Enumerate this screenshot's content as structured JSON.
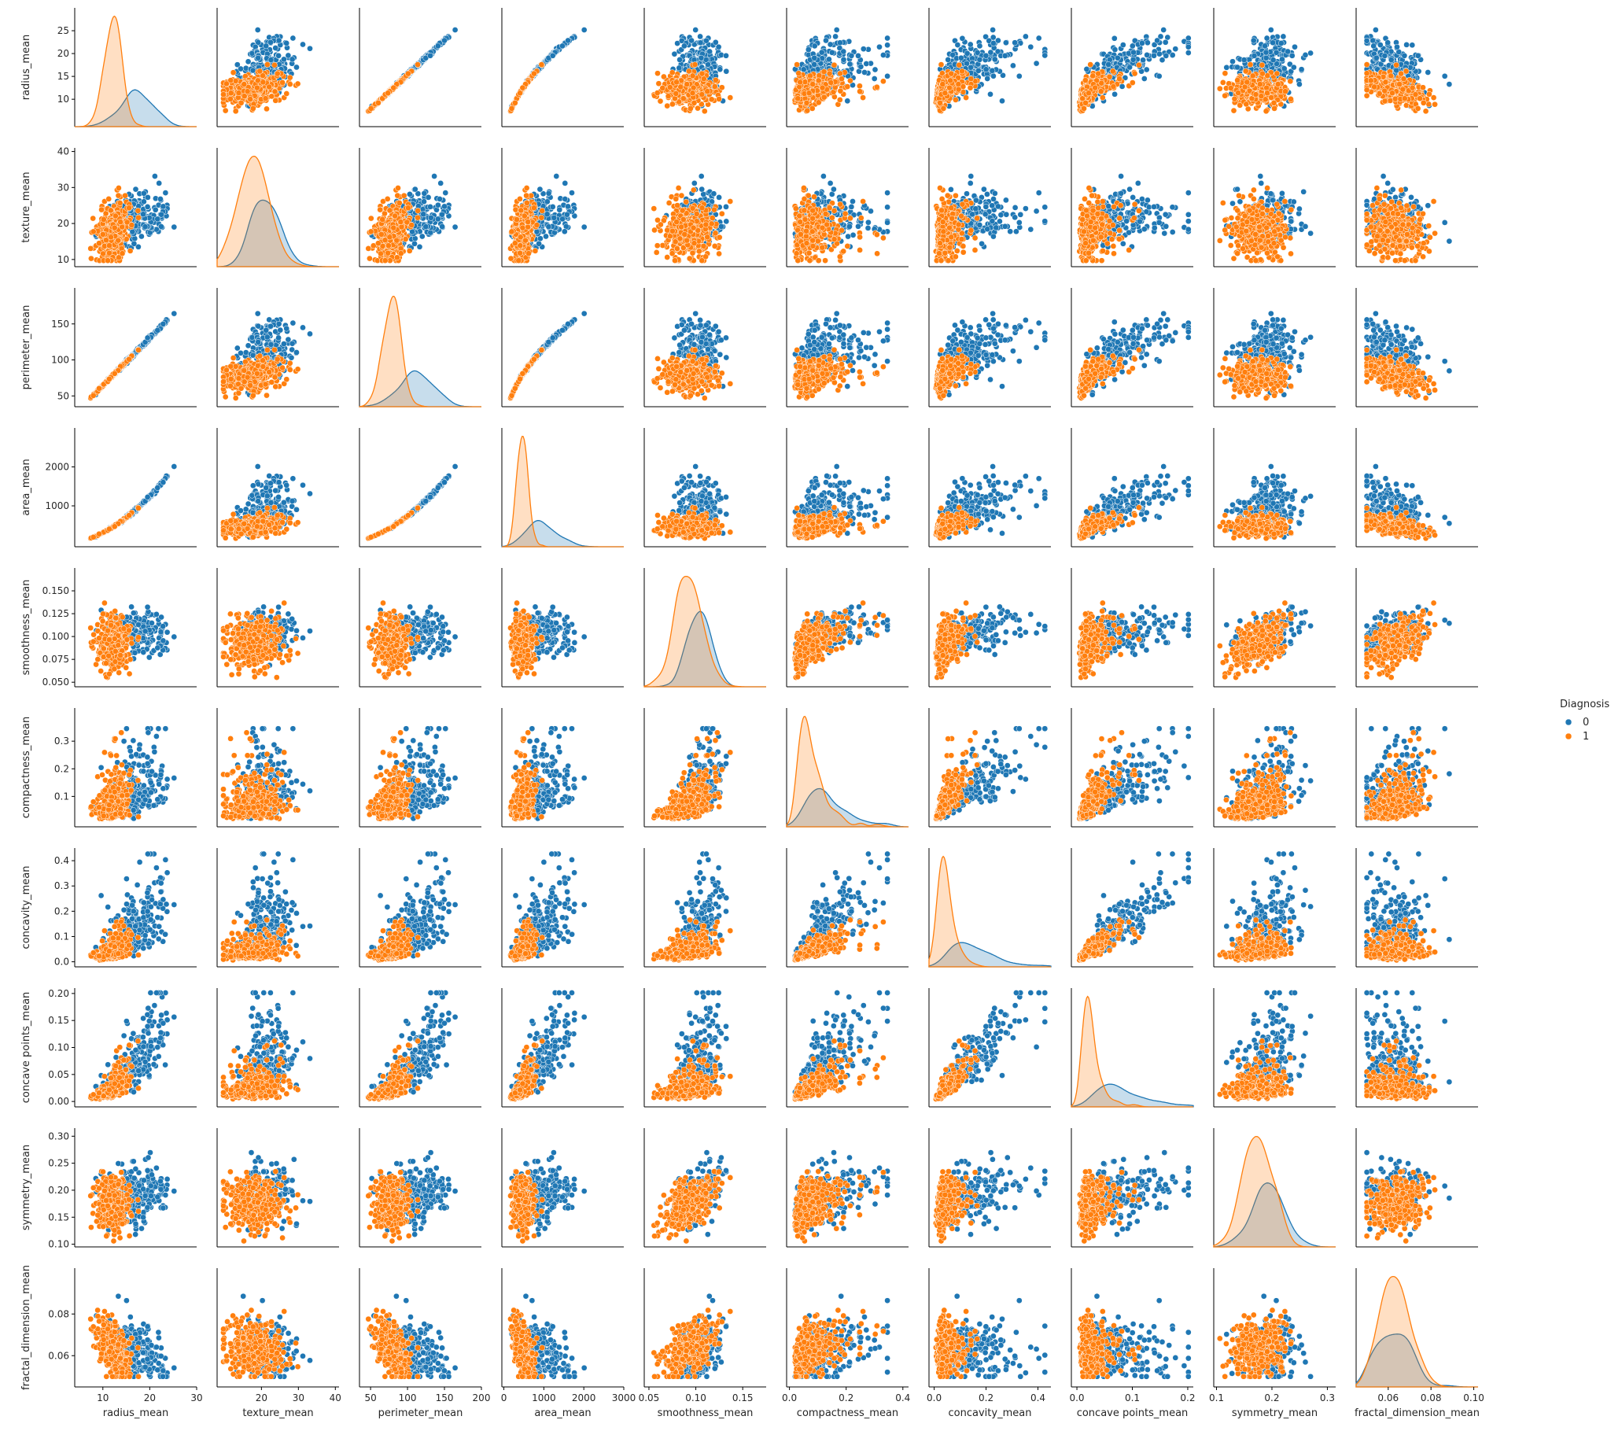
{
  "legend": {
    "title": "Diagnosis",
    "placement": "right"
  },
  "chart_data": {
    "type": "scatter",
    "subtype": "pairplot",
    "hue": "Diagnosis",
    "hue_levels": [
      {
        "name": "0",
        "color": "#1f77b4"
      },
      {
        "name": "1",
        "color": "#ff7f0e"
      }
    ],
    "diagonal": "kde",
    "variables": [
      {
        "name": "radius_mean",
        "lim": [
          4.0,
          30.0
        ],
        "ticks": [
          10,
          20,
          30
        ],
        "yticks": [
          10,
          15,
          20,
          25
        ],
        "decimals": 0,
        "dist": {
          "0": {
            "mean": 17.46,
            "sd": 3.2
          },
          "1": {
            "mean": 12.15,
            "sd": 1.78
          }
        },
        "range": [
          6.98,
          28.11
        ]
      },
      {
        "name": "texture_mean",
        "lim": [
          8.0,
          41.0
        ],
        "ticks": [
          20,
          30,
          40
        ],
        "yticks": [
          10,
          20,
          30,
          40
        ],
        "decimals": 0,
        "dist": {
          "0": {
            "mean": 21.6,
            "sd": 3.8
          },
          "1": {
            "mean": 17.9,
            "sd": 4.0
          }
        },
        "range": [
          9.71,
          39.28
        ]
      },
      {
        "name": "perimeter_mean",
        "lim": [
          35.0,
          200.0
        ],
        "ticks": [
          50,
          100,
          150,
          200
        ],
        "yticks": [
          50,
          100,
          150
        ],
        "decimals": 0,
        "dist": {
          "0": {
            "mean": 115.4,
            "sd": 21.9
          },
          "1": {
            "mean": 78.1,
            "sd": 11.8
          }
        },
        "range": [
          43.79,
          188.5
        ]
      },
      {
        "name": "area_mean",
        "lim": [
          -50.0,
          3000.0
        ],
        "ticks": [
          0,
          1000,
          2000,
          3000
        ],
        "yticks": [
          1000,
          2000
        ],
        "decimals": 0,
        "dist": {
          "0": {
            "mean": 978.4,
            "sd": 368
          },
          "1": {
            "mean": 462.8,
            "sd": 134
          }
        },
        "range": [
          143.5,
          2501
        ]
      },
      {
        "name": "smoothness_mean",
        "lim": [
          0.045,
          0.175
        ],
        "ticks": [
          0.05,
          0.1,
          0.15
        ],
        "yticks": [
          0.05,
          0.075,
          0.1,
          0.125,
          0.15
        ],
        "decimals": 2,
        "ydecimals": 3,
        "dist": {
          "0": {
            "mean": 0.1029,
            "sd": 0.0126
          },
          "1": {
            "mean": 0.0925,
            "sd": 0.0134
          }
        },
        "range": [
          0.0526,
          0.1634
        ]
      },
      {
        "name": "compactness_mean",
        "lim": [
          -0.01,
          0.42
        ],
        "ticks": [
          0.0,
          0.2,
          0.4
        ],
        "yticks": [
          0.1,
          0.2,
          0.3
        ],
        "decimals": 1,
        "dist": {
          "0": {
            "mean": 0.145,
            "sd": 0.054
          },
          "1": {
            "mean": 0.08,
            "sd": 0.034
          }
        },
        "range": [
          0.0194,
          0.3454
        ]
      },
      {
        "name": "concavity_mean",
        "lim": [
          -0.02,
          0.45
        ],
        "ticks": [
          0.0,
          0.2,
          0.4
        ],
        "yticks": [
          0.0,
          0.1,
          0.2,
          0.3,
          0.4
        ],
        "decimals": 1,
        "dist": {
          "0": {
            "mean": 0.161,
            "sd": 0.075
          },
          "1": {
            "mean": 0.046,
            "sd": 0.044
          }
        },
        "range": [
          0.0,
          0.4268
        ]
      },
      {
        "name": "concave points_mean",
        "lim": [
          -0.01,
          0.21
        ],
        "ticks": [
          0.0,
          0.1,
          0.2
        ],
        "yticks": [
          0.0,
          0.05,
          0.1,
          0.15,
          0.2
        ],
        "decimals": 1,
        "ydecimals": 2,
        "dist": {
          "0": {
            "mean": 0.088,
            "sd": 0.034
          },
          "1": {
            "mean": 0.026,
            "sd": 0.016
          }
        },
        "range": [
          0.0,
          0.2012
        ]
      },
      {
        "name": "symmetry_mean",
        "lim": [
          0.095,
          0.315
        ],
        "ticks": [
          0.1,
          0.2,
          0.3
        ],
        "yticks": [
          0.1,
          0.15,
          0.2,
          0.25,
          0.3
        ],
        "decimals": 1,
        "ydecimals": 2,
        "dist": {
          "0": {
            "mean": 0.193,
            "sd": 0.028
          },
          "1": {
            "mean": 0.174,
            "sd": 0.025
          }
        },
        "range": [
          0.106,
          0.304
        ]
      },
      {
        "name": "fractal_dimension_mean",
        "lim": [
          0.045,
          0.102
        ],
        "ticks": [
          0.04,
          0.06,
          0.08,
          0.1
        ],
        "yticks": [
          0.06,
          0.08
        ],
        "decimals": 2,
        "dist": {
          "0": {
            "mean": 0.0627,
            "sd": 0.0076
          },
          "1": {
            "mean": 0.0629,
            "sd": 0.0067
          }
        },
        "range": [
          0.05,
          0.0974
        ]
      }
    ]
  }
}
